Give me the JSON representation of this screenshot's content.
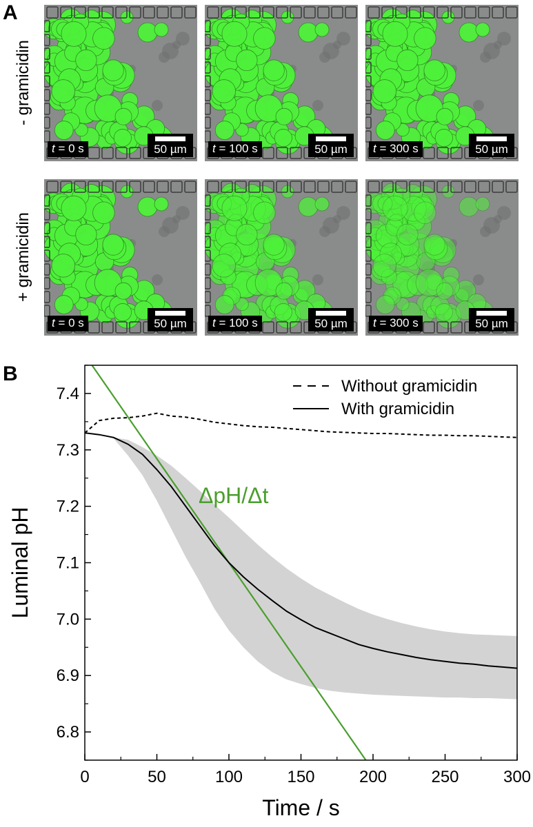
{
  "panels": [
    {
      "letter": "A"
    },
    {
      "letter": "B"
    }
  ],
  "microscopy": {
    "rows": [
      {
        "label": "- gramicidin",
        "green_intensity": 1.0
      },
      {
        "label": "+ gramicidin",
        "green_intensity": 0.8
      }
    ],
    "time_prefix": "t",
    "times": [
      " = 0 s",
      " = 100 s",
      " = 300 s"
    ],
    "scale_bar_label": "50 µm",
    "colors": {
      "vesicle_green": "#4ef23a",
      "background_gray": "#8a8c8b"
    }
  },
  "chart_data": {
    "type": "line",
    "xlabel": "Time / s",
    "ylabel": "Luminal pH",
    "xlim": [
      0,
      300
    ],
    "ylim": [
      6.75,
      7.45
    ],
    "x_ticks": [
      "0",
      "50",
      "100",
      "150",
      "200",
      "250",
      "300"
    ],
    "y_ticks": [
      "6.8",
      "6.9",
      "7.0",
      "7.1",
      "7.2",
      "7.3",
      "7.4"
    ],
    "legend_position": "top-right",
    "series": [
      {
        "name": "Without gramicidin",
        "style": "dashed",
        "color": "#000000",
        "x": [
          0,
          10,
          20,
          30,
          40,
          50,
          60,
          70,
          80,
          90,
          100,
          110,
          120,
          130,
          140,
          150,
          160,
          170,
          180,
          190,
          200,
          210,
          220,
          230,
          240,
          250,
          260,
          270,
          280,
          290,
          300
        ],
        "y": [
          7.33,
          7.352,
          7.356,
          7.357,
          7.36,
          7.365,
          7.36,
          7.358,
          7.354,
          7.349,
          7.346,
          7.343,
          7.341,
          7.34,
          7.338,
          7.336,
          7.334,
          7.332,
          7.331,
          7.33,
          7.329,
          7.329,
          7.328,
          7.327,
          7.326,
          7.326,
          7.325,
          7.325,
          7.324,
          7.323,
          7.322
        ]
      },
      {
        "name": "With gramicidin",
        "style": "solid",
        "color": "#000000",
        "x": [
          0,
          10,
          20,
          30,
          40,
          50,
          60,
          70,
          80,
          90,
          100,
          110,
          120,
          130,
          140,
          150,
          160,
          170,
          180,
          190,
          200,
          210,
          220,
          230,
          240,
          250,
          260,
          270,
          280,
          290,
          300
        ],
        "y": [
          7.33,
          7.327,
          7.322,
          7.31,
          7.292,
          7.265,
          7.235,
          7.2,
          7.165,
          7.13,
          7.1,
          7.075,
          7.053,
          7.033,
          7.014,
          6.999,
          6.985,
          6.975,
          6.965,
          6.955,
          6.948,
          6.942,
          6.937,
          6.932,
          6.928,
          6.925,
          6.922,
          6.92,
          6.917,
          6.915,
          6.913
        ],
        "band_upper": [
          7.33,
          7.327,
          7.322,
          7.318,
          7.305,
          7.29,
          7.272,
          7.25,
          7.227,
          7.203,
          7.18,
          7.156,
          7.132,
          7.11,
          7.09,
          7.072,
          7.056,
          7.043,
          7.03,
          7.018,
          7.008,
          7.0,
          6.993,
          6.987,
          6.982,
          6.978,
          6.975,
          6.973,
          6.972,
          6.971,
          6.97
        ],
        "band_lower": [
          7.33,
          7.327,
          7.32,
          7.29,
          7.255,
          7.21,
          7.16,
          7.11,
          7.065,
          7.018,
          6.98,
          6.95,
          6.925,
          6.906,
          6.893,
          6.885,
          6.878,
          6.873,
          6.87,
          6.868,
          6.866,
          6.865,
          6.864,
          6.863,
          6.862,
          6.861,
          6.861,
          6.86,
          6.86,
          6.859,
          6.858
        ],
        "band_color": "#d3d3d3"
      }
    ],
    "annotations": [
      {
        "text": "ΔpH/Δt",
        "color": "#4a9e2d",
        "line_x": [
          5,
          195
        ],
        "line_y": [
          7.45,
          6.75
        ]
      }
    ]
  }
}
